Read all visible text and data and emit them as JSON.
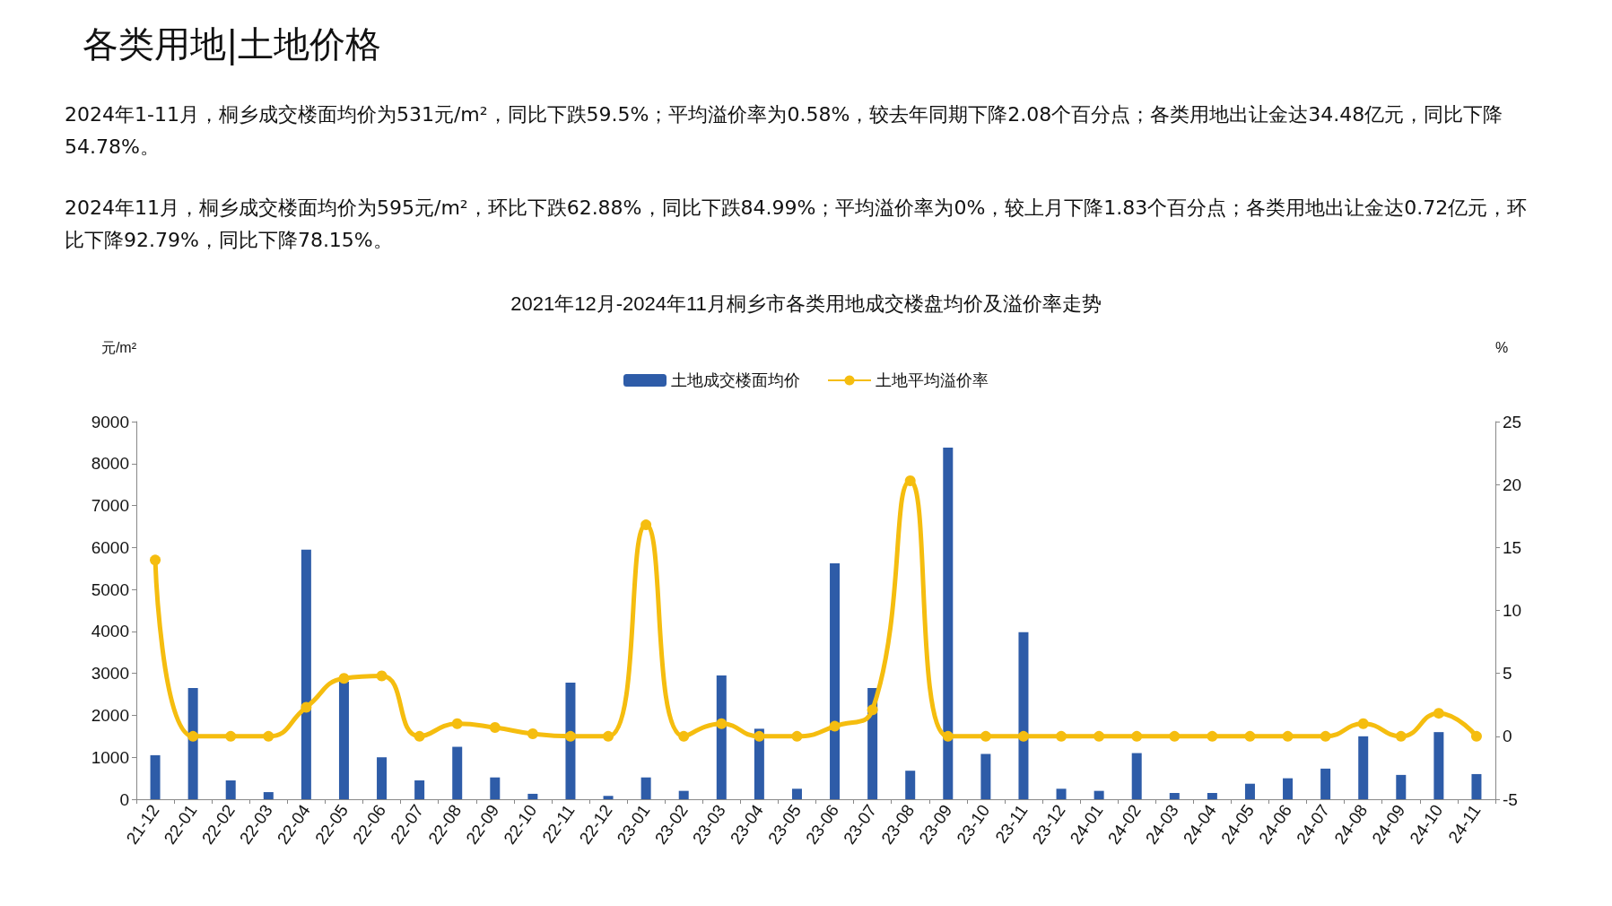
{
  "chart_data": {
    "type": "bar",
    "title": "各类用地|土地价格",
    "subtitle": "2021年12月-2024年11月桐乡市各类用地成交楼盘均价及溢价率走势",
    "annotations": [
      "2024年1-11月，桐乡成交楼面均价为531元/m²，同比下跌59.5%；平均溢价率为0.58%，较去年同期下降2.08个百分点；各类用地出让金达34.48亿元，同比下降54.78%。",
      "2024年11月，桐乡成交楼面均价为595元/m²，环比下跌62.88%，同比下跌84.99%；平均溢价率为0%，较上月下降1.83个百分点；各类用地出让金达0.72亿元，环比下降92.79%，同比下降78.15%。"
    ],
    "categories": [
      "21-12",
      "22-01",
      "22-02",
      "22-03",
      "22-04",
      "22-05",
      "22-06",
      "22-07",
      "22-08",
      "22-09",
      "22-10",
      "22-11",
      "22-12",
      "23-01",
      "23-02",
      "23-03",
      "23-04",
      "23-05",
      "23-06",
      "23-07",
      "23-08",
      "23-09",
      "23-10",
      "23-11",
      "23-12",
      "24-01",
      "24-02",
      "24-03",
      "24-04",
      "24-05",
      "24-06",
      "24-07",
      "24-08",
      "24-09",
      "24-10",
      "24-11"
    ],
    "series": [
      {
        "name": "土地成交楼面均价",
        "color": "#2e5ca8",
        "values": [
          1050,
          2650,
          450,
          170,
          5950,
          2800,
          1000,
          450,
          1250,
          520,
          130,
          2780,
          80,
          520,
          200,
          2950,
          1680,
          250,
          5620,
          2650,
          680,
          8380,
          1080,
          3980,
          250,
          200,
          1100,
          150,
          150,
          370,
          500,
          730,
          1500,
          580,
          1600,
          600
        ]
      },
      {
        "name": "土地平均溢价率",
        "type": "line",
        "axis": "y2",
        "color": "#f5bd0f",
        "values": [
          14,
          0,
          0,
          0,
          2.3,
          4.6,
          4.8,
          0,
          1,
          0.7,
          0.2,
          0,
          0,
          16.8,
          0,
          1,
          0,
          0,
          0.8,
          2.1,
          20.3,
          0,
          0,
          0,
          0,
          0,
          0,
          0,
          0,
          0,
          0,
          0,
          1,
          0,
          1.83,
          0
        ]
      }
    ],
    "ylabel": "元/m²",
    "y2label": "%",
    "ylim": [
      0,
      9000
    ],
    "yticks": [
      0,
      1000,
      2000,
      3000,
      4000,
      5000,
      6000,
      7000,
      8000,
      9000
    ],
    "y2lim": [
      -5,
      25
    ],
    "y2ticks": [
      -5,
      0,
      5,
      10,
      15,
      20,
      25
    ],
    "legend": "top",
    "marker": "circle"
  }
}
